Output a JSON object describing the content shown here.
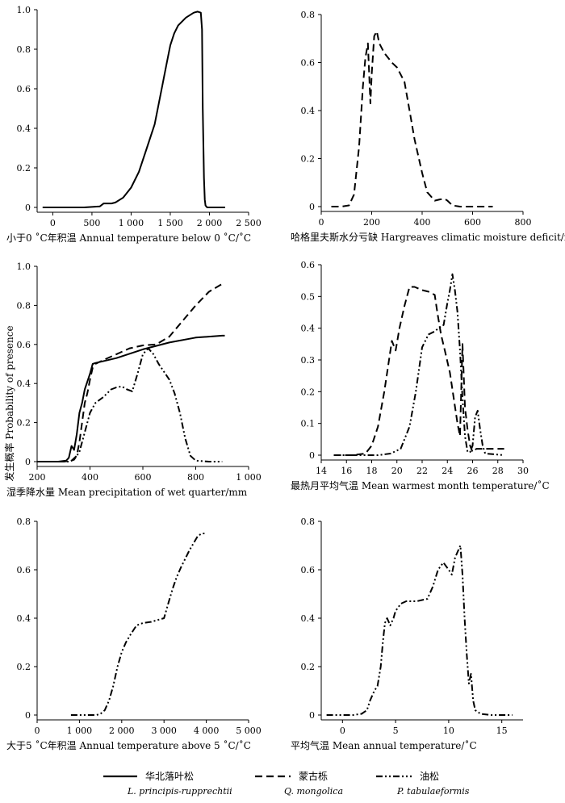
{
  "shared_ylabel": "发生概率 Probability of presence",
  "series_styles": [
    {
      "key": "lar",
      "name_cn": "华北落叶松",
      "name_en": "L. principis-rupprechtii",
      "dash": "solid"
    },
    {
      "key": "que",
      "name_cn": "蒙古栎",
      "name_en": "Q. mongolica",
      "dash": "dash"
    },
    {
      "key": "pin",
      "name_cn": "油松",
      "name_en": "P. tabulaeformis",
      "dash": "dashdotdot"
    }
  ],
  "chart_data": [
    {
      "type": "line",
      "xlabel": "小于0 ˚C年积温 Annual temperature below 0 ˚C/˚C",
      "xlim": [
        -200,
        2500
      ],
      "ylim": [
        0,
        1
      ],
      "xticks": [
        0,
        500,
        1000,
        1500,
        2000,
        2500
      ],
      "xtick_labels": [
        "0",
        "500",
        "1 000",
        "1 500",
        "2 000",
        "2 500"
      ],
      "yticks": [
        0,
        0.2,
        0.4,
        0.6,
        0.8,
        1.0
      ],
      "ytick_labels": [
        "0",
        "0.2",
        "0.4",
        "0.6",
        "0.8",
        "1.0"
      ],
      "series": [
        {
          "name": "华北落叶松",
          "x": [
            -130,
            0,
            200,
            400,
            600,
            650,
            700,
            750,
            800,
            900,
            1000,
            1100,
            1200,
            1300,
            1400,
            1450,
            1500,
            1550,
            1600,
            1700,
            1800,
            1850,
            1890,
            1905,
            1915,
            1930,
            1940,
            1950,
            1970,
            2000,
            2200
          ],
          "y": [
            0,
            0,
            0,
            0,
            0.005,
            0.02,
            0.02,
            0.02,
            0.025,
            0.05,
            0.1,
            0.18,
            0.3,
            0.42,
            0.62,
            0.72,
            0.82,
            0.88,
            0.92,
            0.96,
            0.985,
            0.99,
            0.985,
            0.9,
            0.5,
            0.15,
            0.04,
            0.01,
            0,
            0,
            0
          ]
        }
      ]
    },
    {
      "type": "line",
      "xlabel": "哈格里夫斯水分亏缺 Hargreaves climatic moisture deficit/mm",
      "xlim": [
        0,
        800
      ],
      "ylim": [
        0,
        0.8
      ],
      "xticks": [
        0,
        200,
        400,
        600,
        800
      ],
      "xtick_labels": [
        "0",
        "200",
        "400",
        "600",
        "800"
      ],
      "yticks": [
        0,
        0.2,
        0.4,
        0.6,
        0.8
      ],
      "ytick_labels": [
        "0",
        "0.2",
        "0.4",
        "0.6",
        "0.8"
      ],
      "series": [
        {
          "name": "蒙古栎",
          "x": [
            40,
            80,
            110,
            130,
            150,
            165,
            175,
            185,
            195,
            200,
            210,
            220,
            230,
            250,
            280,
            300,
            330,
            350,
            370,
            400,
            420,
            450,
            470,
            490,
            500,
            520,
            550,
            600,
            680
          ],
          "y": [
            0,
            0,
            0.005,
            0.05,
            0.25,
            0.5,
            0.62,
            0.68,
            0.43,
            0.55,
            0.71,
            0.73,
            0.68,
            0.64,
            0.6,
            0.58,
            0.52,
            0.4,
            0.28,
            0.14,
            0.06,
            0.025,
            0.03,
            0.032,
            0.025,
            0.005,
            0,
            0,
            0
          ]
        }
      ]
    },
    {
      "type": "line",
      "xlabel": "湿季降水量 Mean precipitation of wet quarter/mm",
      "xlim": [
        200,
        1000
      ],
      "ylim": [
        0,
        1
      ],
      "xticks": [
        200,
        400,
        600,
        800,
        1000
      ],
      "xtick_labels": [
        "200",
        "400",
        "600",
        "800",
        "1 000"
      ],
      "yticks": [
        0,
        0.2,
        0.4,
        0.6,
        0.8,
        1.0
      ],
      "ytick_labels": [
        "0",
        "0.2",
        "0.4",
        "0.6",
        "0.8",
        "1.0"
      ],
      "series": [
        {
          "name": "华北落叶松",
          "x": [
            200,
            280,
            310,
            320,
            330,
            340,
            350,
            360,
            370,
            380,
            400,
            410,
            420,
            500,
            600,
            700,
            800,
            900,
            910
          ],
          "y": [
            0,
            0,
            0.005,
            0.02,
            0.08,
            0.06,
            0.14,
            0.25,
            0.3,
            0.37,
            0.45,
            0.5,
            0.505,
            0.53,
            0.575,
            0.61,
            0.635,
            0.645,
            0.645
          ]
        }
      ]
    },
    {
      "type": "line",
      "xlabel": "最热月平均气温 Mean warmest month temperature/˚C",
      "xlim": [
        14,
        30
      ],
      "ylim": [
        0,
        0.6
      ],
      "xticks": [
        14,
        16,
        18,
        20,
        22,
        24,
        26,
        28,
        30
      ],
      "xtick_labels": [
        "14",
        "16",
        "18",
        "20",
        "22",
        "24",
        "26",
        "28",
        "30"
      ],
      "yticks": [
        0,
        0.1,
        0.2,
        0.3,
        0.4,
        0.5,
        0.6
      ],
      "ytick_labels": [
        "0",
        "0.1",
        "0.2",
        "0.3",
        "0.4",
        "0.5",
        "0.6"
      ],
      "series": [
        {
          "name": "蒙古栎",
          "x": [
            15,
            16.5,
            17.5,
            18,
            18.5,
            19,
            19.3,
            19.6,
            19.9,
            20.2,
            20.6,
            21,
            21.4,
            22,
            22.5,
            23,
            23.2,
            23.5,
            23.8,
            24.2,
            24.5,
            24.8,
            25,
            25.2,
            25.4,
            25.6,
            25.8,
            26,
            26.3,
            26.5,
            26.8,
            27.2,
            28.5
          ],
          "y": [
            0,
            0,
            0.005,
            0.03,
            0.09,
            0.2,
            0.28,
            0.36,
            0.33,
            0.4,
            0.47,
            0.53,
            0.53,
            0.52,
            0.515,
            0.505,
            0.45,
            0.38,
            0.33,
            0.26,
            0.18,
            0.1,
            0.06,
            0.35,
            0.15,
            0.08,
            0.03,
            0.01,
            0.02,
            0.02,
            0.02,
            0.02,
            0.02
          ]
        },
        {
          "name": "油松",
          "x": [
            15,
            17.5,
            18.5,
            19.5,
            20.3,
            21,
            21.5,
            22,
            22.5,
            23,
            23.3,
            23.7,
            24,
            24.2,
            24.4,
            24.6,
            24.8,
            25,
            25.2,
            25.4,
            25.6,
            25.8,
            26,
            26.2,
            26.4,
            26.6,
            26.8,
            27,
            28.5
          ],
          "y": [
            0,
            0,
            0,
            0.005,
            0.02,
            0.09,
            0.2,
            0.34,
            0.38,
            0.39,
            0.4,
            0.41,
            0.48,
            0.52,
            0.57,
            0.52,
            0.45,
            0.33,
            0.18,
            0.06,
            0.01,
            0.01,
            0.03,
            0.12,
            0.14,
            0.08,
            0.03,
            0.005,
            0
          ]
        }
      ]
    },
    {
      "type": "line",
      "xlabel": "大于5 ˚C年积温 Annual temperature above 5 ˚C/˚C",
      "xlim": [
        0,
        5000
      ],
      "ylim": [
        0,
        0.8
      ],
      "xticks": [
        0,
        1000,
        2000,
        3000,
        4000,
        5000
      ],
      "xtick_labels": [
        "0",
        "1 000",
        "2 000",
        "3 000",
        "4 000",
        "5 000"
      ],
      "yticks": [
        0,
        0.2,
        0.4,
        0.6,
        0.8
      ],
      "ytick_labels": [
        "0",
        "0.2",
        "0.4",
        "0.6",
        "0.8"
      ],
      "series": [
        {
          "name": "油松",
          "x": [
            800,
            1000,
            1200,
            1400,
            1500,
            1600,
            1700,
            1800,
            1900,
            2000,
            2100,
            2200,
            2350,
            2500,
            2700,
            3000,
            3100,
            3200,
            3300,
            3400,
            3600,
            3800,
            3900,
            4000
          ],
          "y": [
            0,
            0,
            0,
            0,
            0.005,
            0.02,
            0.06,
            0.12,
            0.2,
            0.26,
            0.3,
            0.33,
            0.37,
            0.38,
            0.385,
            0.4,
            0.46,
            0.52,
            0.57,
            0.61,
            0.68,
            0.74,
            0.75,
            0.75
          ]
        }
      ]
    },
    {
      "type": "line",
      "xlabel": "平均气温 Mean annual temperature/˚C",
      "xlim": [
        -2,
        17
      ],
      "ylim": [
        0,
        0.8
      ],
      "xticks": [
        0,
        5,
        10,
        15
      ],
      "xtick_labels": [
        "0",
        "5",
        "10",
        "15"
      ],
      "yticks": [
        0,
        0.2,
        0.4,
        0.6,
        0.8
      ],
      "ytick_labels": [
        "0",
        "0.2",
        "0.4",
        "0.6",
        "0.8"
      ],
      "series": [
        {
          "name": "油松",
          "x": [
            -1.5,
            0,
            1,
            1.8,
            2.3,
            2.6,
            3,
            3.3,
            3.6,
            3.8,
            4,
            4.2,
            4.5,
            4.8,
            5,
            5.5,
            6,
            7,
            8,
            8.5,
            9,
            9.5,
            10,
            10.3,
            10.6,
            10.9,
            11.1,
            11.3,
            11.5,
            11.7,
            11.9,
            12.1,
            12.3,
            12.5,
            13,
            14,
            16
          ],
          "y": [
            0,
            0,
            0,
            0.005,
            0.02,
            0.06,
            0.1,
            0.12,
            0.2,
            0.3,
            0.38,
            0.4,
            0.37,
            0.4,
            0.43,
            0.46,
            0.47,
            0.47,
            0.48,
            0.53,
            0.6,
            0.63,
            0.6,
            0.58,
            0.65,
            0.68,
            0.7,
            0.58,
            0.4,
            0.25,
            0.13,
            0.17,
            0.06,
            0.02,
            0.005,
            0,
            0
          ]
        }
      ]
    }
  ],
  "extra_series": {
    "que_in_panel3": {
      "name": "蒙古栎",
      "x": [
        200,
        300,
        330,
        350,
        360,
        370,
        380,
        390,
        400,
        410,
        420,
        450,
        500,
        550,
        600,
        650,
        700,
        750,
        800,
        850,
        900,
        910
      ],
      "y": [
        0,
        0,
        0.005,
        0.03,
        0.1,
        0.2,
        0.3,
        0.35,
        0.42,
        0.48,
        0.5,
        0.52,
        0.55,
        0.58,
        0.595,
        0.6,
        0.64,
        0.72,
        0.8,
        0.87,
        0.91,
        0.91
      ]
    },
    "pin_in_panel3": {
      "name": "油松",
      "x": [
        200,
        320,
        340,
        360,
        380,
        400,
        420,
        450,
        480,
        500,
        520,
        540,
        560,
        580,
        600,
        620,
        640,
        660,
        680,
        700,
        720,
        740,
        760,
        780,
        800,
        850,
        900
      ],
      "y": [
        0,
        0,
        0.01,
        0.05,
        0.15,
        0.25,
        0.3,
        0.33,
        0.37,
        0.38,
        0.385,
        0.37,
        0.36,
        0.45,
        0.55,
        0.58,
        0.55,
        0.5,
        0.46,
        0.42,
        0.35,
        0.25,
        0.12,
        0.03,
        0.005,
        0,
        0
      ]
    }
  }
}
